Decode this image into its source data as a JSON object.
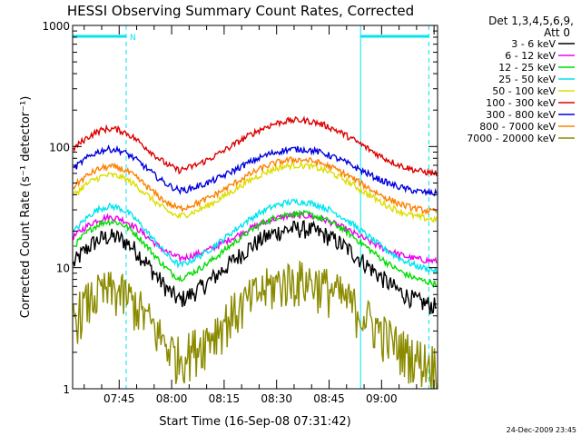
{
  "chart_data": {
    "type": "line",
    "title": "HESSI Observing Summary Count Rates, Corrected",
    "xlabel": "Start Time (16-Sep-08 07:31:42)",
    "ylabel": "Corrected Count Rate (s⁻¹ detector⁻¹)",
    "yscale": "log",
    "xlim": [
      "07:31:42",
      "09:16:00"
    ],
    "ylim": [
      1,
      1000
    ],
    "xticks": [
      "07:45",
      "08:00",
      "08:15",
      "08:30",
      "08:45",
      "09:00"
    ],
    "yticks": [
      "1",
      "10",
      "100",
      "1000"
    ],
    "legend_header": [
      "Det 1,3,4,5,6,9,",
      "Att 0"
    ],
    "legend_position": "right",
    "footer_date": "24-Dec-2009 23:45",
    "markers": {
      "night_label": "N",
      "night_windows": [
        [
          "07:31:42",
          "07:47:00"
        ],
        [
          "08:54:00",
          "09:13:30"
        ]
      ],
      "saa_line": "08:54:00"
    },
    "series": [
      {
        "name": "3 - 6 keV",
        "color": "#000000",
        "base": 4.5,
        "peaks": [
          18,
          21
        ]
      },
      {
        "name": "6 - 12 keV",
        "color": "#ee00ee",
        "base": 11,
        "peaks": [
          26,
          27
        ]
      },
      {
        "name": "12 - 25 keV",
        "color": "#00dd00",
        "base": 7,
        "peaks": [
          24,
          28
        ]
      },
      {
        "name": "25 - 50 keV",
        "color": "#00e5ee",
        "base": 9,
        "peaks": [
          32,
          35
        ]
      },
      {
        "name": "50 - 100 keV",
        "color": "#dddd00",
        "base": 24,
        "peaks": [
          58,
          70
        ]
      },
      {
        "name": "100 - 300 keV",
        "color": "#dd0000",
        "base": 58,
        "peaks": [
          140,
          165
        ]
      },
      {
        "name": "300 - 800 keV",
        "color": "#0000dd",
        "base": 40,
        "peaks": [
          95,
          95
        ]
      },
      {
        "name": "800 - 7000 keV",
        "color": "#ff8000",
        "base": 28,
        "peaks": [
          68,
          78
        ]
      },
      {
        "name": "7000 - 20000 keV",
        "color": "#8b8b00",
        "base": 1.5,
        "peaks": [
          6.5,
          8
        ]
      }
    ]
  }
}
